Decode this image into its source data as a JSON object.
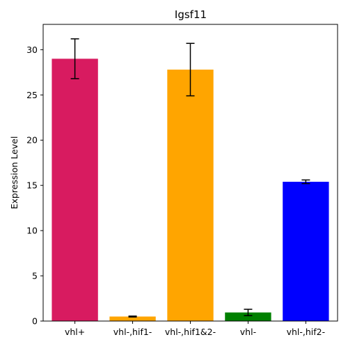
{
  "chart_data": {
    "type": "bar",
    "title": "Igsf11",
    "xlabel": "",
    "ylabel": "Expression Level",
    "categories": [
      "vhl+",
      "vhl-,hif1-",
      "vhl-,hif1&2-",
      "vhl-",
      "vhl-,hif2-"
    ],
    "values": [
      29.0,
      0.5,
      27.8,
      0.95,
      15.4
    ],
    "errors": [
      2.2,
      0.05,
      2.9,
      0.35,
      0.2
    ],
    "colors": [
      "#d81b60",
      "#ffa500",
      "#ffa500",
      "#008000",
      "#0000ff"
    ],
    "ylim": [
      0,
      32.8
    ],
    "yticks": [
      0,
      5,
      10,
      15,
      20,
      25,
      30
    ],
    "grid": false,
    "legend": "none"
  }
}
